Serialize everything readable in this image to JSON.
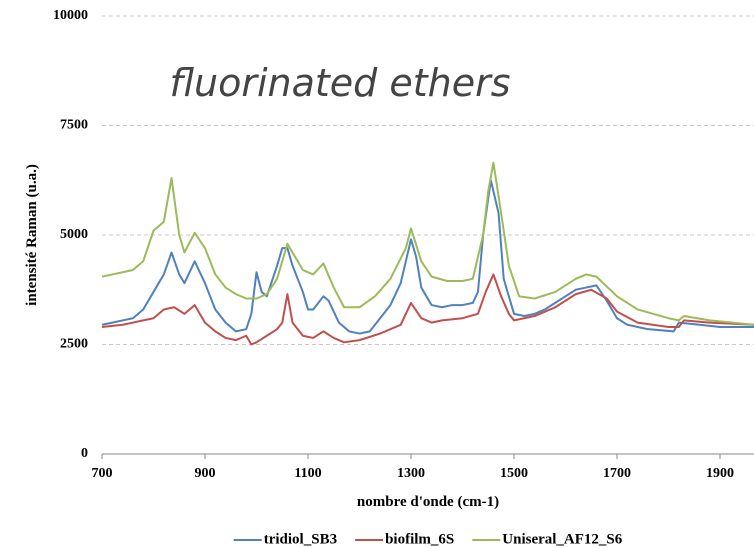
{
  "chart_data": {
    "type": "line",
    "title": "fluorinated ethers",
    "x_label": "nombre d'onde (cm-1)",
    "y_label": "intensité Raman (u.a.)",
    "xlim": [
      700,
      1966
    ],
    "xticks": [
      700,
      900,
      1100,
      1300,
      1500,
      1700,
      1900
    ],
    "ylim": [
      0,
      10000
    ],
    "yticks": [
      0,
      2500,
      5000,
      7500,
      10000
    ],
    "grid": true,
    "legend": "bottom",
    "series": [
      {
        "name": "tridiol_SB3",
        "color": "#4f81bd",
        "x": [
          700,
          720,
          760,
          780,
          800,
          820,
          835,
          850,
          860,
          880,
          900,
          920,
          940,
          960,
          980,
          990,
          1000,
          1010,
          1020,
          1040,
          1050,
          1060,
          1070,
          1090,
          1100,
          1110,
          1130,
          1140,
          1160,
          1180,
          1200,
          1220,
          1240,
          1260,
          1280,
          1300,
          1310,
          1320,
          1340,
          1360,
          1380,
          1400,
          1420,
          1430,
          1440,
          1455,
          1470,
          1480,
          1500,
          1520,
          1540,
          1560,
          1580,
          1600,
          1620,
          1640,
          1660,
          1680,
          1700,
          1720,
          1760,
          1810,
          1820,
          1860,
          1900,
          1966
        ],
        "values": [
          2950,
          3000,
          3100,
          3300,
          3700,
          4100,
          4600,
          4100,
          3900,
          4400,
          3900,
          3300,
          3000,
          2800,
          2850,
          3200,
          4150,
          3700,
          3600,
          4300,
          4700,
          4700,
          4300,
          3700,
          3300,
          3300,
          3600,
          3500,
          3000,
          2800,
          2750,
          2800,
          3100,
          3400,
          3900,
          4900,
          4500,
          3800,
          3400,
          3350,
          3400,
          3400,
          3450,
          3700,
          5000,
          6250,
          5500,
          4000,
          3200,
          3150,
          3200,
          3300,
          3450,
          3600,
          3750,
          3800,
          3850,
          3500,
          3100,
          2950,
          2850,
          2800,
          3000,
          2950,
          2900,
          2900
        ]
      },
      {
        "name": "biofilm_6S",
        "color": "#c0504d",
        "x": [
          700,
          740,
          780,
          800,
          820,
          840,
          860,
          880,
          900,
          920,
          940,
          960,
          980,
          990,
          1000,
          1020,
          1040,
          1050,
          1060,
          1070,
          1090,
          1110,
          1130,
          1150,
          1170,
          1200,
          1240,
          1280,
          1300,
          1320,
          1340,
          1360,
          1400,
          1430,
          1445,
          1460,
          1475,
          1490,
          1500,
          1540,
          1580,
          1620,
          1650,
          1680,
          1700,
          1740,
          1800,
          1820,
          1830,
          1880,
          1966
        ],
        "values": [
          2900,
          2950,
          3050,
          3100,
          3300,
          3350,
          3200,
          3400,
          3000,
          2800,
          2650,
          2600,
          2700,
          2500,
          2550,
          2700,
          2850,
          3000,
          3650,
          3000,
          2700,
          2650,
          2800,
          2650,
          2550,
          2600,
          2750,
          2950,
          3450,
          3100,
          3000,
          3050,
          3100,
          3200,
          3700,
          4100,
          3600,
          3200,
          3050,
          3150,
          3350,
          3650,
          3750,
          3550,
          3250,
          3000,
          2900,
          2900,
          3050,
          3000,
          2950
        ]
      },
      {
        "name": "Uniseral_AF12_S6",
        "color": "#9bbb59",
        "x": [
          700,
          720,
          760,
          780,
          800,
          820,
          835,
          850,
          860,
          880,
          900,
          920,
          940,
          960,
          980,
          1000,
          1020,
          1040,
          1050,
          1060,
          1070,
          1090,
          1110,
          1130,
          1150,
          1170,
          1200,
          1230,
          1260,
          1290,
          1300,
          1320,
          1340,
          1370,
          1400,
          1420,
          1440,
          1450,
          1460,
          1475,
          1490,
          1510,
          1540,
          1580,
          1620,
          1640,
          1660,
          1700,
          1740,
          1800,
          1820,
          1830,
          1880,
          1966
        ],
        "values": [
          4050,
          4100,
          4200,
          4400,
          5100,
          5300,
          6300,
          5000,
          4600,
          5050,
          4700,
          4100,
          3800,
          3650,
          3550,
          3550,
          3650,
          4000,
          4400,
          4800,
          4600,
          4200,
          4100,
          4350,
          3800,
          3350,
          3350,
          3600,
          4000,
          4700,
          5150,
          4400,
          4050,
          3950,
          3950,
          4000,
          5000,
          6000,
          6650,
          5500,
          4300,
          3600,
          3550,
          3700,
          4000,
          4100,
          4050,
          3600,
          3300,
          3100,
          3050,
          3150,
          3050,
          2950
        ]
      }
    ]
  }
}
